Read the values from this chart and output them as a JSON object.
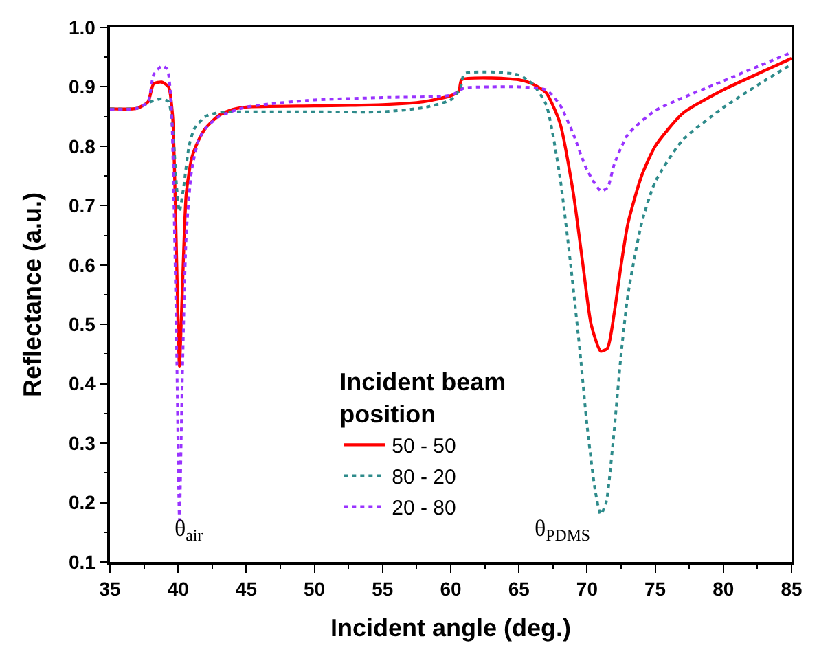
{
  "chart_data": {
    "type": "line",
    "xlabel": "Incident angle (deg.)",
    "ylabel": "Reflectance (a.u.)",
    "legend_title": "Incident beam\nposition",
    "legend": "bottom center",
    "marker": "none",
    "xlim": [
      35,
      85
    ],
    "xticks": [
      35,
      40,
      45,
      50,
      55,
      60,
      65,
      70,
      75,
      80,
      85
    ],
    "ylim": [
      0.1,
      1.0
    ],
    "yticks": [
      0.1,
      0.2,
      0.3,
      0.4,
      0.5,
      0.6,
      0.7,
      0.8,
      0.9,
      {
        "value": 1.0,
        "label": "1.0"
      }
    ],
    "annotations": [
      "θ$_{air}$",
      "θ$_{PDMS}$"
    ],
    "series": [
      {
        "name": "50 - 50",
        "color": "#ff0000",
        "line_style": "solid",
        "x": [
          35,
          37,
          37.8,
          38.2,
          38.8,
          39.3,
          39.6,
          39.8,
          40.0,
          40.1,
          40.3,
          40.6,
          41,
          41.5,
          42,
          43,
          44,
          45,
          50,
          55,
          58,
          60,
          60.6,
          60.8,
          63,
          65,
          66,
          67,
          68,
          69,
          69.7,
          70.3,
          71,
          71.5,
          72,
          72.5,
          73,
          74,
          75,
          77,
          80,
          83,
          85
        ],
        "values": [
          0.863,
          0.864,
          0.875,
          0.905,
          0.908,
          0.9,
          0.85,
          0.7,
          0.5,
          0.43,
          0.55,
          0.72,
          0.78,
          0.81,
          0.83,
          0.852,
          0.862,
          0.866,
          0.868,
          0.87,
          0.875,
          0.885,
          0.893,
          0.912,
          0.915,
          0.912,
          0.905,
          0.89,
          0.84,
          0.72,
          0.6,
          0.5,
          0.455,
          0.46,
          0.52,
          0.6,
          0.67,
          0.75,
          0.8,
          0.855,
          0.895,
          0.927,
          0.948
        ]
      },
      {
        "name": "80 - 20",
        "color": "#2e8b8b",
        "line_style": "dotted",
        "x": [
          35,
          37,
          38,
          38.8,
          39.3,
          39.6,
          39.9,
          40.1,
          40.4,
          40.8,
          41.2,
          42,
          43,
          45,
          50,
          55,
          58,
          60,
          60.7,
          61,
          63,
          65,
          66,
          67,
          68,
          68.8,
          69.5,
          70,
          70.6,
          71,
          71.4,
          71.9,
          72.5,
          73,
          74,
          75,
          77,
          80,
          83,
          85
        ],
        "values": [
          0.863,
          0.864,
          0.875,
          0.88,
          0.875,
          0.83,
          0.73,
          0.69,
          0.73,
          0.8,
          0.83,
          0.85,
          0.857,
          0.858,
          0.858,
          0.858,
          0.865,
          0.878,
          0.897,
          0.922,
          0.925,
          0.92,
          0.905,
          0.87,
          0.75,
          0.6,
          0.45,
          0.33,
          0.22,
          0.18,
          0.2,
          0.3,
          0.45,
          0.55,
          0.67,
          0.74,
          0.81,
          0.865,
          0.91,
          0.938
        ]
      },
      {
        "name": "20 - 80",
        "color": "#9933ff",
        "line_style": "dotted",
        "x": [
          35,
          37,
          37.8,
          38.2,
          38.8,
          39.2,
          39.5,
          39.7,
          39.9,
          40.1,
          40.3,
          40.6,
          41,
          41.5,
          42,
          43,
          45,
          50,
          55,
          60,
          61,
          63,
          65,
          67,
          68,
          69,
          70,
          71,
          71.5,
          72,
          73,
          75,
          80,
          85
        ],
        "values": [
          0.862,
          0.864,
          0.875,
          0.92,
          0.935,
          0.93,
          0.87,
          0.7,
          0.45,
          0.17,
          0.4,
          0.65,
          0.76,
          0.81,
          0.83,
          0.85,
          0.866,
          0.878,
          0.882,
          0.886,
          0.898,
          0.9,
          0.9,
          0.895,
          0.87,
          0.82,
          0.76,
          0.725,
          0.73,
          0.77,
          0.82,
          0.86,
          0.91,
          0.958
        ]
      }
    ]
  }
}
